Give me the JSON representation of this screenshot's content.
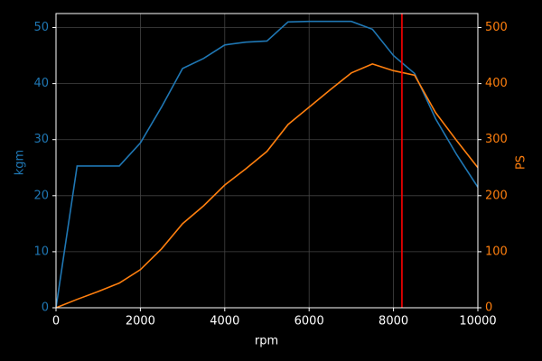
{
  "chart_data": {
    "type": "line",
    "xlabel": "rpm",
    "ylabel": "kgm",
    "y2label": "PS",
    "x": [
      0,
      500,
      1000,
      1500,
      2000,
      2500,
      3000,
      3500,
      4000,
      4500,
      5000,
      5500,
      6000,
      6500,
      7000,
      7500,
      8000,
      8500,
      9000,
      9500,
      10000
    ],
    "series": [
      {
        "name": "kgm",
        "color": "#1f77b4",
        "axis": "y",
        "values": [
          0,
          25.3,
          25.3,
          25.3,
          29.4,
          35.8,
          42.7,
          44.5,
          46.9,
          47.4,
          47.6,
          51.0,
          51.1,
          51.1,
          51.1,
          49.7,
          45.0,
          41.8,
          33.7,
          27.3,
          21.5
        ]
      },
      {
        "name": "PS",
        "color": "#ff7f0e",
        "axis": "y2",
        "values": [
          0,
          15,
          29,
          44,
          68,
          105,
          150,
          182,
          219,
          248,
          279,
          327,
          358,
          389,
          419,
          435,
          423,
          415,
          348,
          298,
          250
        ]
      }
    ],
    "vline": {
      "x": 8200,
      "color": "#ff0000"
    },
    "xlim": [
      0,
      10000
    ],
    "xticks": [
      0,
      2000,
      4000,
      6000,
      8000,
      10000
    ],
    "ylim": [
      0,
      52.5
    ],
    "yticks": [
      0,
      10,
      20,
      30,
      40,
      50
    ],
    "y2lim": [
      0,
      525
    ],
    "y2ticks": [
      0,
      100,
      200,
      300,
      400,
      500
    ],
    "grid": true
  }
}
